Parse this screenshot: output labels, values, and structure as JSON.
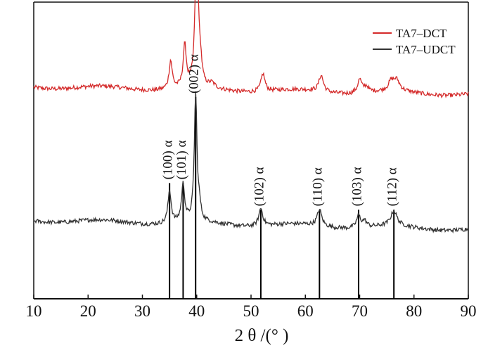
{
  "chart_data": {
    "type": "line",
    "title": "",
    "xlabel": "2 θ /(°  )",
    "ylabel": "",
    "xlim": [
      10,
      90
    ],
    "xticks": [
      "10",
      "20",
      "30",
      "40",
      "50",
      "60",
      "70",
      "80",
      "90"
    ],
    "grid": false,
    "legend_position": "top-right",
    "series": [
      {
        "name": "TA7–DCT",
        "color": "#d42a2a",
        "baseline_start": 0.715,
        "baseline_end": 0.69,
        "peaks": [
          {
            "x": 35.2,
            "h": 0.095,
            "w": 0.35
          },
          {
            "x": 37.8,
            "h": 0.14,
            "w": 0.35
          },
          {
            "x": 40.0,
            "h": 0.56,
            "w": 0.32
          },
          {
            "x": 40.7,
            "h": 0.06,
            "w": 0.3
          },
          {
            "x": 42.8,
            "h": 0.015,
            "w": 0.6
          },
          {
            "x": 52.2,
            "h": 0.06,
            "w": 0.45
          },
          {
            "x": 62.9,
            "h": 0.055,
            "w": 0.5
          },
          {
            "x": 70.0,
            "h": 0.045,
            "w": 0.45
          },
          {
            "x": 71.2,
            "h": 0.02,
            "w": 0.5
          },
          {
            "x": 75.8,
            "h": 0.03,
            "w": 0.6
          },
          {
            "x": 76.8,
            "h": 0.035,
            "w": 0.7
          }
        ]
      },
      {
        "name": "TA7–UDCT",
        "color": "#333333",
        "baseline_start": 0.265,
        "baseline_end": 0.235,
        "peaks": [
          {
            "x": 35.0,
            "h": 0.11,
            "w": 0.35
          },
          {
            "x": 37.5,
            "h": 0.125,
            "w": 0.35
          },
          {
            "x": 39.8,
            "h": 0.43,
            "w": 0.3
          },
          {
            "x": 40.5,
            "h": 0.04,
            "w": 0.3
          },
          {
            "x": 51.8,
            "h": 0.06,
            "w": 0.45
          },
          {
            "x": 62.6,
            "h": 0.055,
            "w": 0.5
          },
          {
            "x": 69.8,
            "h": 0.04,
            "w": 0.45
          },
          {
            "x": 70.9,
            "h": 0.02,
            "w": 0.5
          },
          {
            "x": 76.3,
            "h": 0.05,
            "w": 0.7
          }
        ]
      }
    ],
    "reference_lines": [
      {
        "x": 35.0,
        "top": 0.39
      },
      {
        "x": 37.5,
        "top": 0.39
      },
      {
        "x": 39.8,
        "top": 0.68
      },
      {
        "x": 51.8,
        "top": 0.3
      },
      {
        "x": 62.6,
        "top": 0.3
      },
      {
        "x": 69.8,
        "top": 0.3
      },
      {
        "x": 76.3,
        "top": 0.3
      }
    ],
    "annotations": [
      {
        "text": "(100) α",
        "x": 35.0
      },
      {
        "text": "(101) α",
        "x": 37.5
      },
      {
        "text": "(002) α",
        "x": 39.8
      },
      {
        "text": "(102) α",
        "x": 51.8
      },
      {
        "text": "(110) α",
        "x": 62.6
      },
      {
        "text": "(103) α",
        "x": 69.8
      },
      {
        "text": "(112) α",
        "x": 76.3
      }
    ]
  }
}
